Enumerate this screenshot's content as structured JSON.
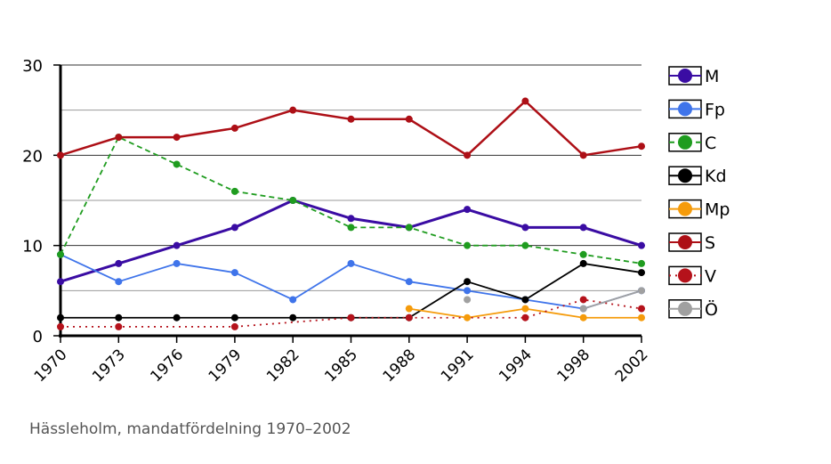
{
  "chart_data": {
    "type": "line",
    "title": "",
    "xlabel": "",
    "ylabel": "",
    "categories": [
      "1970",
      "1973",
      "1976",
      "1979",
      "1982",
      "1985",
      "1988",
      "1991",
      "1994",
      "1998",
      "2002"
    ],
    "ylim": [
      0,
      30
    ],
    "yticks": [
      0,
      10,
      20,
      30
    ],
    "grid": true,
    "legend_position": "right",
    "series": [
      {
        "name": "M",
        "color": "#3a0ca3",
        "dash": "solid",
        "values": [
          6,
          8,
          10,
          12,
          15,
          13,
          12,
          14,
          12,
          12,
          10
        ]
      },
      {
        "name": "Fp",
        "color": "#3f74ea",
        "dash": "solid",
        "values": [
          9,
          6,
          8,
          7,
          4,
          8,
          6,
          5,
          4,
          3,
          5
        ]
      },
      {
        "name": "C",
        "color": "#1f9c1f",
        "dash": "dashed",
        "values": [
          9,
          22,
          19,
          16,
          15,
          12,
          12,
          10,
          10,
          9,
          8
        ]
      },
      {
        "name": "Kd",
        "color": "#000000",
        "dash": "solid",
        "values": [
          2,
          2,
          2,
          2,
          2,
          2,
          2,
          6,
          4,
          8,
          7
        ]
      },
      {
        "name": "Mp",
        "color": "#f59b0b",
        "dash": "solid",
        "values": [
          null,
          null,
          null,
          null,
          null,
          null,
          3,
          2,
          3,
          2,
          2
        ]
      },
      {
        "name": "S",
        "color": "#ad0f16",
        "dash": "solid",
        "values": [
          20,
          22,
          22,
          23,
          25,
          24,
          24,
          20,
          26,
          20,
          21
        ]
      },
      {
        "name": "V",
        "color": "#b5121b",
        "dash": "dotted",
        "values": [
          1,
          1,
          null,
          1,
          null,
          2,
          2,
          null,
          2,
          4,
          3
        ]
      },
      {
        "name": "Ö",
        "color": "#a0a0a0",
        "dash": "solid",
        "values": [
          null,
          null,
          null,
          null,
          null,
          null,
          null,
          4,
          null,
          3,
          5
        ]
      }
    ]
  },
  "caption": "Hässleholm, mandatfördelning 1970–2002"
}
